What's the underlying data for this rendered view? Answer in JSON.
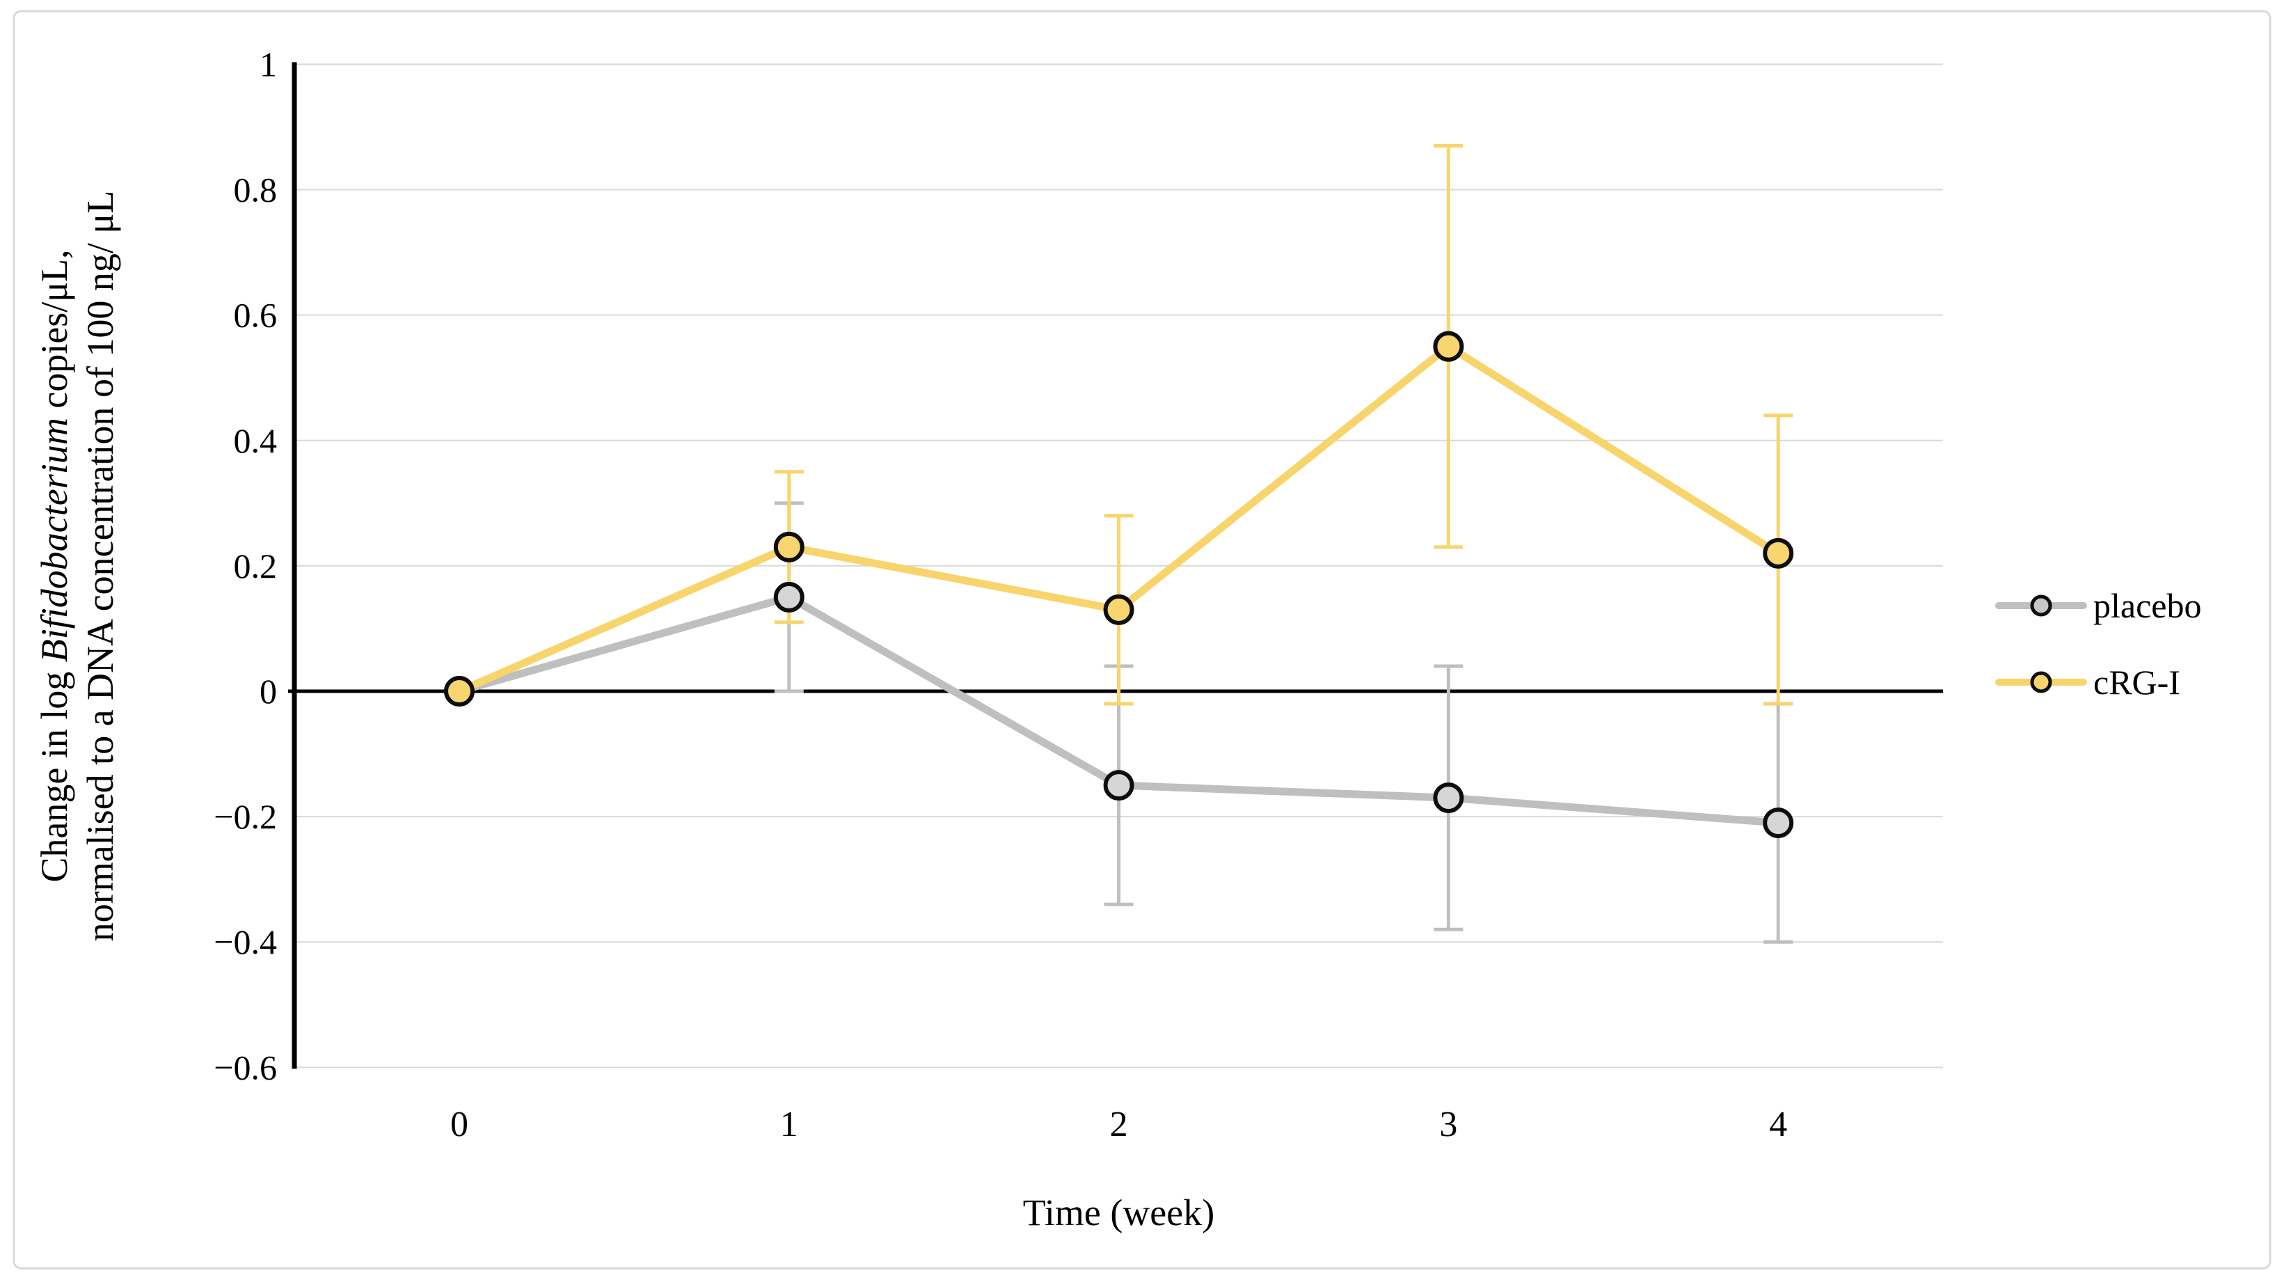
{
  "figure": {
    "background": "#FFFFFF",
    "frame_color": "#D9D9D9",
    "axis_color": "#000000",
    "gridline_color": "#D9D9D9",
    "zero_line_color": "#000000",
    "tick_label_color": "#000000"
  },
  "chart_data": {
    "type": "line",
    "title": "",
    "xlabel": "Time (week)",
    "ylabel_line1_pre": "Change in log ",
    "ylabel_line1_italic": "Bifidobacterium",
    "ylabel_line1_post": " copies/μL,",
    "ylabel_line2": "normalised to a DNA concentration of 100 ng/ μL",
    "x": [
      0,
      1,
      2,
      3,
      4
    ],
    "x_tick_labels": [
      "0",
      "1",
      "2",
      "3",
      "4"
    ],
    "y_ticks": [
      1,
      0.8,
      0.6,
      0.4,
      0.2,
      0,
      -0.2,
      -0.4,
      -0.6
    ],
    "y_tick_labels": [
      "1",
      "0.8",
      "0.6",
      "0.4",
      "0.2",
      "0",
      "−0.2",
      "−0.4",
      "−0.6"
    ],
    "ylim": [
      -0.6,
      1
    ],
    "grid": true,
    "legend_position": "right",
    "legend": [
      "placebo",
      "cRG-I"
    ],
    "series": [
      {
        "name": "placebo",
        "color": "#BFBFBF",
        "marker_fill": "#D6D6D6",
        "legend_marker_fill": "#C6C6C6",
        "values": [
          0,
          0.15,
          -0.15,
          -0.17,
          -0.21
        ],
        "err_low": [
          null,
          0.0,
          -0.34,
          -0.38,
          -0.4
        ],
        "err_high": [
          null,
          0.3,
          0.04,
          0.04,
          -0.02
        ]
      },
      {
        "name": "cRG-I",
        "color": "#F8D46C",
        "marker_fill": "#F8D56E",
        "legend_marker_fill": "#F8D46C",
        "values": [
          0,
          0.23,
          0.13,
          0.55,
          0.22
        ],
        "err_low": [
          null,
          0.11,
          -0.02,
          0.23,
          -0.02
        ],
        "err_high": [
          null,
          0.35,
          0.28,
          0.87,
          0.44
        ]
      }
    ]
  }
}
